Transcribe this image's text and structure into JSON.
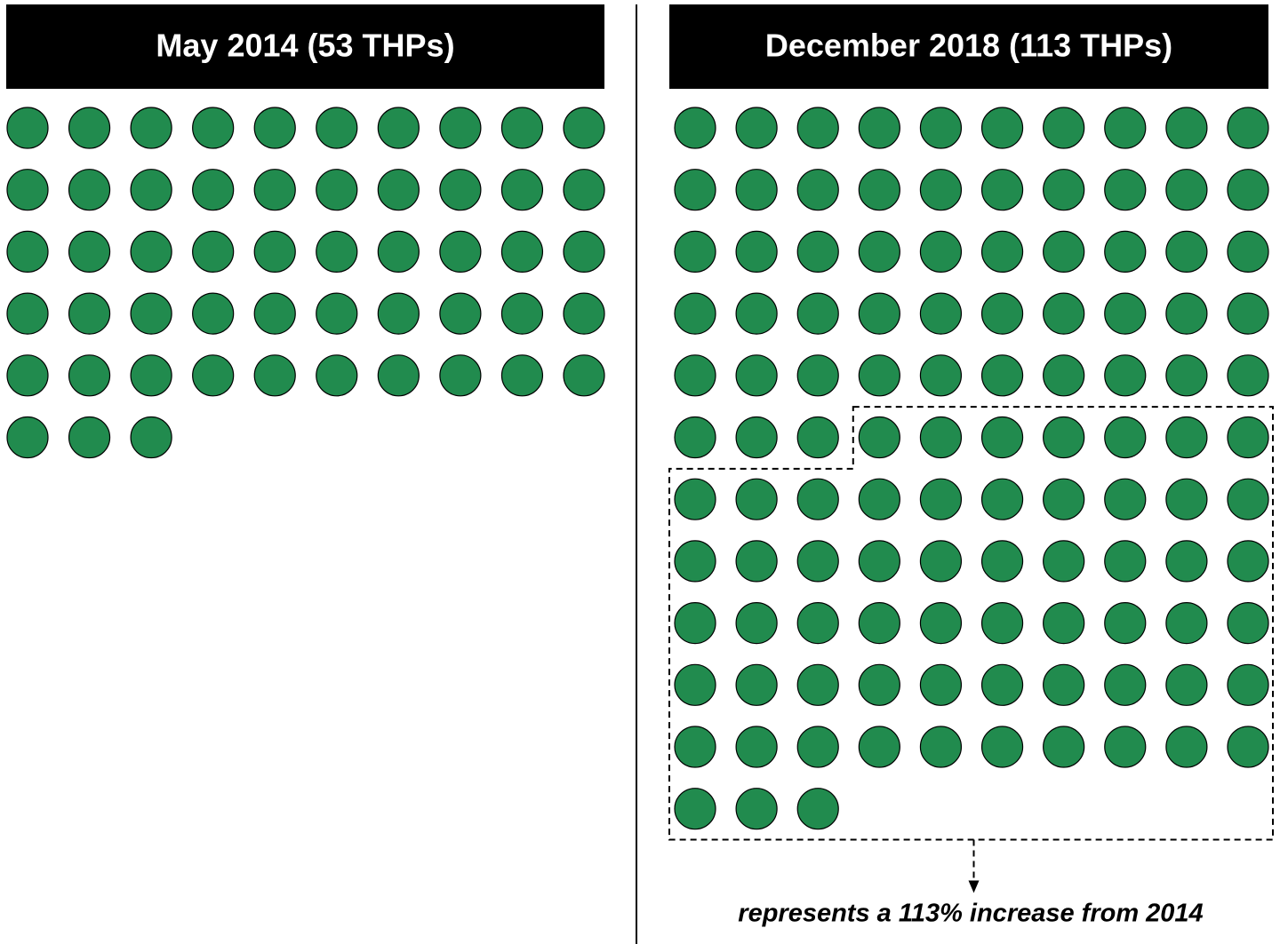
{
  "chart_data": [
    {
      "type": "pictograph",
      "title": "May 2014 (53 THPs)",
      "count": 53,
      "color": "#218b4e"
    },
    {
      "type": "pictograph",
      "title": "December 2018 (113 THPs)",
      "count": 113,
      "color": "#218b4e",
      "annotation": "represents a 113% increase from 2014"
    }
  ]
}
